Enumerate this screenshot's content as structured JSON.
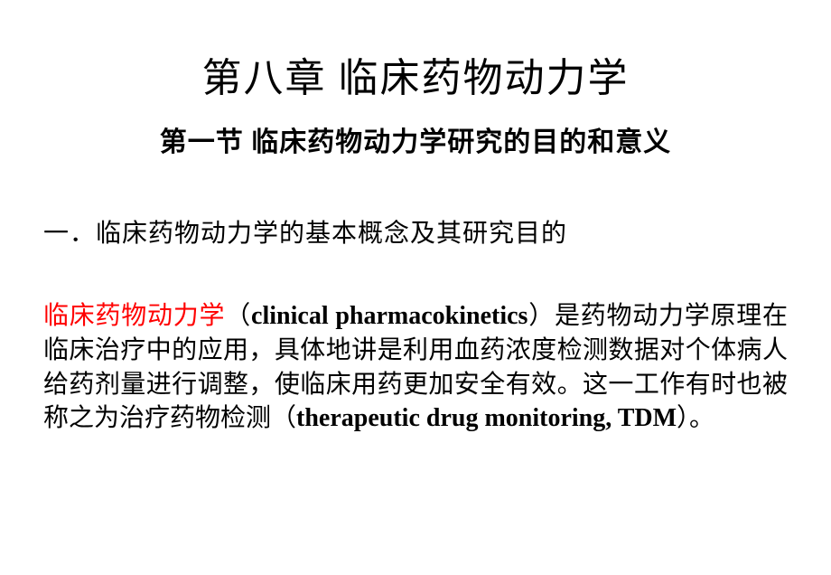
{
  "chapter_title": "第八章 临床药物动力学",
  "section_title": "第一节 临床药物动力学研究的目的和意义",
  "subheading": "一．临床药物动力学的基本概念及其研究目的",
  "body": {
    "highlighted_term": "临床药物动力学",
    "english_term_1": "clinical pharmacokinetics",
    "text_part_1": "（",
    "text_part_2": "）是药物动力学原理在临床治疗中的应用，具体地讲是利用血药浓度检测数据对个体病人给药剂量进行调整，使临床用药更加安全有效。这一工作有时也被称之为治疗药物检测（",
    "english_term_2": "therapeutic drug monitoring, TDM",
    "text_part_3": "）。"
  },
  "colors": {
    "background": "#ffffff",
    "text": "#000000",
    "highlight": "#ff0000"
  },
  "fonts": {
    "chapter_title_size": 44,
    "section_title_size": 30,
    "subheading_size": 28,
    "body_size": 28
  }
}
